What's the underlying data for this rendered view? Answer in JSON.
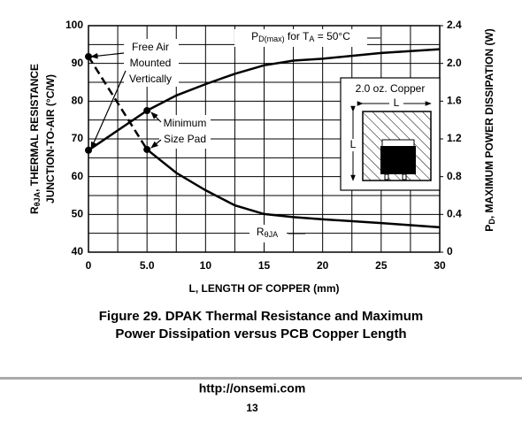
{
  "chart_data": {
    "type": "line",
    "x_label": "L, LENGTH OF COPPER (mm)",
    "y_label": {
      "line1": [
        "R",
        "θJA",
        ", THERMAL RESISTANCE"
      ],
      "line2": "JUNCTION-TO-AIR (°C/W)"
    },
    "y2_label": [
      "P",
      "D",
      ", MAXIMUM POWER DISSIPATION (W)"
    ],
    "x": [
      0,
      5,
      7.5,
      10,
      12.5,
      15,
      17.5,
      20,
      25,
      30
    ],
    "xlim": [
      0,
      30
    ],
    "xticks": [
      0,
      {
        "value": 5,
        "label": "5.0"
      },
      10,
      15,
      20,
      25,
      30
    ],
    "x_minor_ticks": [
      2.5,
      7.5,
      12.5,
      17.5,
      22.5,
      27.5
    ],
    "ylim": [
      40,
      100
    ],
    "yticks": [
      40,
      50,
      60,
      70,
      80,
      90,
      100
    ],
    "y_minor_ticks": [
      45,
      55,
      65,
      75,
      85,
      95
    ],
    "y2lim": [
      0,
      2.4
    ],
    "y2ticks": [
      0,
      0.4,
      0.8,
      1.2,
      1.6,
      {
        "value": 2,
        "label": "2.0"
      },
      2.4
    ],
    "grid": true,
    "series": [
      {
        "name": [
          "R",
          "θJA"
        ],
        "color": "#000000",
        "dashed_to_x": 5,
        "marker_x": [
          0,
          5
        ],
        "values": [
          91.8,
          67.2,
          61,
          56.4,
          52.4,
          50.1,
          49.3,
          48.7,
          47.7,
          46.6
        ]
      },
      {
        "name": [
          "P",
          "D(max)",
          " for T",
          "A",
          " = 50°C"
        ],
        "color": "#000000",
        "axis": "y2",
        "marker_x": [
          0,
          5
        ],
        "values": [
          1.08,
          1.5,
          1.66,
          1.78,
          1.89,
          1.98,
          2.03,
          2.05,
          2.11,
          2.15
        ]
      }
    ],
    "annotations": {
      "free_air": [
        "Free Air",
        "Mounted",
        "Vertically"
      ],
      "min_pad": [
        "Minimum",
        "Size Pad"
      ],
      "inset_title": "2.0 oz. Copper",
      "inset_dim_h": "L",
      "inset_dim_v": "L"
    }
  },
  "caption": [
    "Figure 29. DPAK Thermal Resistance and Maximum",
    "Power Dissipation versus PCB Copper Length"
  ],
  "footer": {
    "url": "http://onsemi.com",
    "page": "13"
  }
}
